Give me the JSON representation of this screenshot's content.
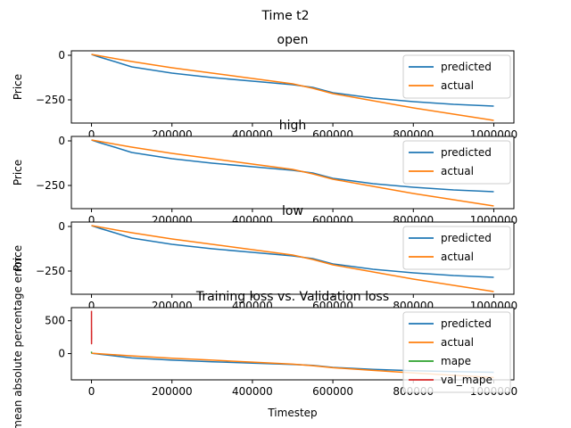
{
  "figure": {
    "suptitle": "Time t2"
  },
  "colors": {
    "predicted": "#1f77b4",
    "actual": "#ff7f0e",
    "mape": "#2ca02c",
    "val_mape": "#d62728",
    "axes": "#000000"
  },
  "chart_data": [
    {
      "type": "line",
      "title": "open",
      "xlabel": "",
      "ylabel": "Price",
      "xlim": [
        -50000,
        1050000
      ],
      "ylim": [
        -380,
        25
      ],
      "xticks": [
        0,
        200000,
        400000,
        600000,
        800000,
        1000000
      ],
      "xtick_labels": [
        "0",
        "200000",
        "400000",
        "600000",
        "800000",
        "1000000"
      ],
      "yticks": [
        0,
        -250
      ],
      "ytick_labels": [
        "0",
        "−250"
      ],
      "legend": [
        "predicted",
        "actual"
      ],
      "legend_loc": "right",
      "series": [
        {
          "name": "predicted",
          "x": [
            0,
            20000,
            50000,
            100000,
            200000,
            300000,
            400000,
            500000,
            550000,
            600000,
            700000,
            800000,
            900000,
            1000000
          ],
          "values": [
            5,
            -10,
            -30,
            -65,
            -100,
            -125,
            -145,
            -165,
            -180,
            -210,
            -240,
            -260,
            -275,
            -285
          ]
        },
        {
          "name": "actual",
          "x": [
            0,
            100000,
            200000,
            300000,
            400000,
            500000,
            550000,
            600000,
            700000,
            800000,
            900000,
            1000000
          ],
          "values": [
            5,
            -35,
            -70,
            -100,
            -130,
            -160,
            -185,
            -215,
            -255,
            -295,
            -330,
            -365
          ]
        }
      ]
    },
    {
      "type": "line",
      "title": "high",
      "xlabel": "",
      "ylabel": "Price",
      "xlim": [
        -50000,
        1050000
      ],
      "ylim": [
        -380,
        25
      ],
      "xticks": [
        0,
        200000,
        400000,
        600000,
        800000,
        1000000
      ],
      "xtick_labels": [
        "0",
        "200000",
        "400000",
        "600000",
        "800000",
        "1000000"
      ],
      "yticks": [
        0,
        -250
      ],
      "ytick_labels": [
        "0",
        "−250"
      ],
      "legend": [
        "predicted",
        "actual"
      ],
      "legend_loc": "right",
      "series": [
        {
          "name": "predicted",
          "x": [
            0,
            20000,
            50000,
            100000,
            200000,
            300000,
            400000,
            500000,
            550000,
            600000,
            700000,
            800000,
            900000,
            1000000
          ],
          "values": [
            5,
            -10,
            -30,
            -65,
            -100,
            -125,
            -145,
            -165,
            -180,
            -210,
            -240,
            -260,
            -275,
            -285
          ]
        },
        {
          "name": "actual",
          "x": [
            0,
            100000,
            200000,
            300000,
            400000,
            500000,
            550000,
            600000,
            700000,
            800000,
            900000,
            1000000
          ],
          "values": [
            5,
            -35,
            -70,
            -100,
            -130,
            -160,
            -185,
            -215,
            -255,
            -295,
            -330,
            -365
          ]
        }
      ]
    },
    {
      "type": "line",
      "title": "low",
      "xlabel": "",
      "ylabel": "Price",
      "xlim": [
        -50000,
        1050000
      ],
      "ylim": [
        -380,
        25
      ],
      "xticks": [
        0,
        200000,
        400000,
        600000,
        800000,
        1000000
      ],
      "xtick_labels": [
        "0",
        "200000",
        "400000",
        "600000",
        "800000",
        "1000000"
      ],
      "yticks": [
        0,
        -250
      ],
      "ytick_labels": [
        "0",
        "−250"
      ],
      "legend": [
        "predicted",
        "actual"
      ],
      "legend_loc": "right",
      "series": [
        {
          "name": "predicted",
          "x": [
            0,
            20000,
            50000,
            100000,
            200000,
            300000,
            400000,
            500000,
            550000,
            600000,
            700000,
            800000,
            900000,
            1000000
          ],
          "values": [
            5,
            -10,
            -30,
            -65,
            -100,
            -125,
            -145,
            -165,
            -180,
            -210,
            -240,
            -260,
            -275,
            -285
          ]
        },
        {
          "name": "actual",
          "x": [
            0,
            100000,
            200000,
            300000,
            400000,
            500000,
            550000,
            600000,
            700000,
            800000,
            900000,
            1000000
          ],
          "values": [
            5,
            -35,
            -70,
            -100,
            -130,
            -160,
            -185,
            -215,
            -255,
            -295,
            -330,
            -365
          ]
        }
      ]
    },
    {
      "type": "line",
      "title": "Training loss vs. Validation loss",
      "xlabel": "Timestep",
      "ylabel": "mean absolute percentage error",
      "xlim": [
        -50000,
        1050000
      ],
      "ylim": [
        -400,
        700
      ],
      "xticks": [
        0,
        200000,
        400000,
        600000,
        800000,
        1000000
      ],
      "xtick_labels": [
        "0",
        "200000",
        "400000",
        "600000",
        "800000",
        "1000000"
      ],
      "yticks": [
        500,
        0
      ],
      "ytick_labels": [
        "500",
        "0"
      ],
      "legend": [
        "predicted",
        "actual",
        "mape",
        "val_mape"
      ],
      "legend_loc": "right",
      "series": [
        {
          "name": "predicted",
          "x": [
            0,
            20000,
            50000,
            100000,
            200000,
            300000,
            400000,
            500000,
            550000,
            600000,
            700000,
            800000,
            900000,
            1000000
          ],
          "values": [
            5,
            -10,
            -30,
            -65,
            -100,
            -125,
            -145,
            -165,
            -180,
            -210,
            -240,
            -260,
            -275,
            -285
          ]
        },
        {
          "name": "actual",
          "x": [
            0,
            100000,
            200000,
            300000,
            400000,
            500000,
            550000,
            600000,
            700000,
            800000,
            900000,
            1000000
          ],
          "values": [
            5,
            -35,
            -70,
            -100,
            -130,
            -160,
            -185,
            -215,
            -255,
            -295,
            -330,
            -365
          ]
        },
        {
          "name": "mape",
          "x": [
            0,
            100,
            200,
            300
          ],
          "values": [
            30,
            15,
            10,
            10
          ]
        },
        {
          "name": "val_mape",
          "x": [
            0,
            50,
            100,
            150,
            200,
            250,
            300
          ],
          "values": [
            650,
            200,
            400,
            150,
            350,
            250,
            220
          ]
        }
      ]
    }
  ]
}
